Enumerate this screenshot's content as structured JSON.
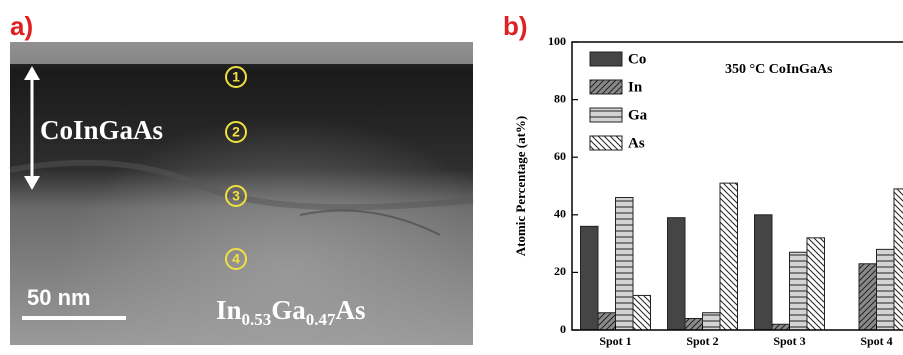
{
  "panel_a": {
    "label": "a)",
    "layer": "CoInGaAs",
    "scale_bar": "50 nm",
    "substrate": [
      "In",
      "0.53",
      "Ga",
      "0.47",
      "As"
    ],
    "spots": [
      "1",
      "2",
      "3",
      "4"
    ]
  },
  "chart_data": {
    "type": "bar",
    "panel_label": "b)",
    "annotation": "350 °C CoInGaAs",
    "ylabel": "Atomic Percentage (at%)",
    "categories": [
      "Spot 1",
      "Spot 2",
      "Spot 3",
      "Spot 4"
    ],
    "series": [
      {
        "name": "Co",
        "color": "#454545",
        "hatch": "none",
        "values": [
          36,
          39,
          40,
          0
        ]
      },
      {
        "name": "In",
        "color": "#8a8a8a",
        "hatch": "/",
        "values": [
          6,
          4,
          2,
          23
        ]
      },
      {
        "name": "Ga",
        "color": "#d4d4d4",
        "hatch": "-",
        "values": [
          46,
          6,
          27,
          28
        ]
      },
      {
        "name": "As",
        "color": "#ffffff",
        "hatch": "\\",
        "values": [
          12,
          51,
          32,
          49
        ]
      }
    ],
    "ylim": [
      0,
      100
    ],
    "yticks": [
      0,
      20,
      40,
      60,
      80,
      100
    ],
    "legend": "upper left"
  }
}
